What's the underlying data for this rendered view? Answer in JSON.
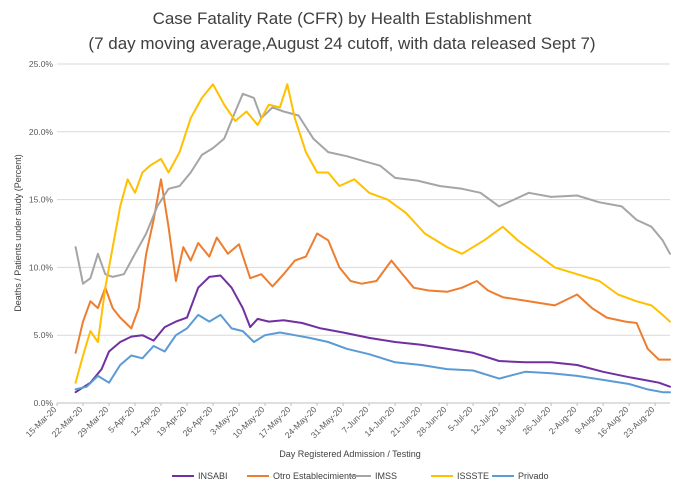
{
  "chart_data": {
    "type": "line",
    "title": "Case Fatality Rate (CFR) by Health Establishment",
    "subtitle": "(7 day moving average,August  24 cutoff, with data released Sept 7)",
    "xlabel": "Day Registered Admission  / Testing",
    "ylabel": "Deaths / Patients under study (Percent)",
    "ylim": [
      0,
      25
    ],
    "yticks": [
      "0.0%",
      "5.0%",
      "10.0%",
      "15.0%",
      "20.0%",
      "25.0%"
    ],
    "ytick_values": [
      0,
      5,
      10,
      15,
      20,
      25
    ],
    "x_start": "2020-03-15",
    "x_end": "2020-08-27",
    "x_tick_dates": [
      "2020-03-15",
      "2020-03-22",
      "2020-03-29",
      "2020-04-05",
      "2020-04-12",
      "2020-04-19",
      "2020-04-26",
      "2020-05-03",
      "2020-05-10",
      "2020-05-17",
      "2020-05-24",
      "2020-05-31",
      "2020-06-07",
      "2020-06-14",
      "2020-06-21",
      "2020-06-28",
      "2020-07-05",
      "2020-07-12",
      "2020-07-19",
      "2020-07-26",
      "2020-08-02",
      "2020-08-09",
      "2020-08-16",
      "2020-08-23"
    ],
    "x_tick_labels": [
      "15-Mar-20",
      "22-Mar-20",
      "29-Mar-20",
      "5-Apr-20",
      "12-Apr-20",
      "19-Apr-20",
      "26-Apr-20",
      "3-May-20",
      "10-May-20",
      "17-May-20",
      "24-May-20",
      "31-May-20",
      "7-Jun-20",
      "14-Jun-20",
      "21-Jun-20",
      "28-Jun-20",
      "5-Jul-20",
      "12-Jul-20",
      "19-Jul-20",
      "26-Jul-20",
      "2-Aug-20",
      "9-Aug-20",
      "16-Aug-20",
      "23-Aug-20"
    ],
    "grid": "horizontal",
    "legend_position": "bottom",
    "series": [
      {
        "name": "INSABI",
        "color": "#7030A0",
        "points": [
          [
            "2020-03-20",
            0.8
          ],
          [
            "2020-03-24",
            1.5
          ],
          [
            "2020-03-27",
            2.5
          ],
          [
            "2020-03-29",
            3.8
          ],
          [
            "2020-04-01",
            4.5
          ],
          [
            "2020-04-04",
            4.9
          ],
          [
            "2020-04-07",
            5.0
          ],
          [
            "2020-04-10",
            4.6
          ],
          [
            "2020-04-13",
            5.6
          ],
          [
            "2020-04-16",
            6.0
          ],
          [
            "2020-04-19",
            6.3
          ],
          [
            "2020-04-22",
            8.5
          ],
          [
            "2020-04-25",
            9.3
          ],
          [
            "2020-04-28",
            9.4
          ],
          [
            "2020-05-01",
            8.5
          ],
          [
            "2020-05-04",
            7.0
          ],
          [
            "2020-05-06",
            5.6
          ],
          [
            "2020-05-08",
            6.2
          ],
          [
            "2020-05-11",
            6.0
          ],
          [
            "2020-05-15",
            6.1
          ],
          [
            "2020-05-20",
            5.9
          ],
          [
            "2020-05-25",
            5.5
          ],
          [
            "2020-05-31",
            5.2
          ],
          [
            "2020-06-07",
            4.8
          ],
          [
            "2020-06-14",
            4.5
          ],
          [
            "2020-06-21",
            4.3
          ],
          [
            "2020-06-28",
            4.0
          ],
          [
            "2020-07-05",
            3.7
          ],
          [
            "2020-07-12",
            3.1
          ],
          [
            "2020-07-19",
            3.0
          ],
          [
            "2020-07-26",
            3.0
          ],
          [
            "2020-08-02",
            2.8
          ],
          [
            "2020-08-09",
            2.3
          ],
          [
            "2020-08-16",
            1.9
          ],
          [
            "2020-08-20",
            1.7
          ],
          [
            "2020-08-24",
            1.5
          ],
          [
            "2020-08-27",
            1.2
          ]
        ]
      },
      {
        "name": "Otro Establecimiento",
        "color": "#ED7D31",
        "points": [
          [
            "2020-03-20",
            3.7
          ],
          [
            "2020-03-22",
            6.0
          ],
          [
            "2020-03-24",
            7.5
          ],
          [
            "2020-03-26",
            7.0
          ],
          [
            "2020-03-28",
            8.5
          ],
          [
            "2020-03-30",
            7.0
          ],
          [
            "2020-04-01",
            6.3
          ],
          [
            "2020-04-04",
            5.5
          ],
          [
            "2020-04-06",
            7.0
          ],
          [
            "2020-04-08",
            11.0
          ],
          [
            "2020-04-10",
            13.5
          ],
          [
            "2020-04-12",
            16.5
          ],
          [
            "2020-04-14",
            13.0
          ],
          [
            "2020-04-16",
            9.0
          ],
          [
            "2020-04-18",
            11.5
          ],
          [
            "2020-04-20",
            10.5
          ],
          [
            "2020-04-22",
            11.8
          ],
          [
            "2020-04-25",
            10.8
          ],
          [
            "2020-04-27",
            12.2
          ],
          [
            "2020-04-30",
            11.0
          ],
          [
            "2020-05-03",
            11.7
          ],
          [
            "2020-05-06",
            9.2
          ],
          [
            "2020-05-09",
            9.5
          ],
          [
            "2020-05-12",
            8.6
          ],
          [
            "2020-05-15",
            9.5
          ],
          [
            "2020-05-18",
            10.5
          ],
          [
            "2020-05-21",
            10.8
          ],
          [
            "2020-05-24",
            12.5
          ],
          [
            "2020-05-27",
            12.0
          ],
          [
            "2020-05-30",
            10.0
          ],
          [
            "2020-06-02",
            9.0
          ],
          [
            "2020-06-05",
            8.8
          ],
          [
            "2020-06-09",
            9.0
          ],
          [
            "2020-06-13",
            10.5
          ],
          [
            "2020-06-16",
            9.5
          ],
          [
            "2020-06-19",
            8.5
          ],
          [
            "2020-06-23",
            8.3
          ],
          [
            "2020-06-28",
            8.2
          ],
          [
            "2020-07-02",
            8.5
          ],
          [
            "2020-07-06",
            9.0
          ],
          [
            "2020-07-09",
            8.3
          ],
          [
            "2020-07-13",
            7.8
          ],
          [
            "2020-07-20",
            7.5
          ],
          [
            "2020-07-27",
            7.2
          ],
          [
            "2020-08-02",
            8.0
          ],
          [
            "2020-08-06",
            7.0
          ],
          [
            "2020-08-10",
            6.3
          ],
          [
            "2020-08-15",
            6.0
          ],
          [
            "2020-08-18",
            5.9
          ],
          [
            "2020-08-21",
            4.0
          ],
          [
            "2020-08-24",
            3.2
          ],
          [
            "2020-08-27",
            3.2
          ]
        ]
      },
      {
        "name": "IMSS",
        "color": "#A5A5A5",
        "points": [
          [
            "2020-03-20",
            11.5
          ],
          [
            "2020-03-22",
            8.8
          ],
          [
            "2020-03-24",
            9.2
          ],
          [
            "2020-03-26",
            11.0
          ],
          [
            "2020-03-28",
            9.5
          ],
          [
            "2020-03-30",
            9.3
          ],
          [
            "2020-04-02",
            9.5
          ],
          [
            "2020-04-05",
            11.0
          ],
          [
            "2020-04-08",
            12.5
          ],
          [
            "2020-04-11",
            14.5
          ],
          [
            "2020-04-14",
            15.8
          ],
          [
            "2020-04-17",
            16.0
          ],
          [
            "2020-04-20",
            17.0
          ],
          [
            "2020-04-23",
            18.3
          ],
          [
            "2020-04-26",
            18.8
          ],
          [
            "2020-04-29",
            19.5
          ],
          [
            "2020-05-02",
            21.5
          ],
          [
            "2020-05-04",
            22.8
          ],
          [
            "2020-05-07",
            22.5
          ],
          [
            "2020-05-09",
            21.0
          ],
          [
            "2020-05-12",
            21.8
          ],
          [
            "2020-05-15",
            21.5
          ],
          [
            "2020-05-19",
            21.2
          ],
          [
            "2020-05-23",
            19.5
          ],
          [
            "2020-05-27",
            18.5
          ],
          [
            "2020-06-01",
            18.2
          ],
          [
            "2020-06-06",
            17.8
          ],
          [
            "2020-06-10",
            17.5
          ],
          [
            "2020-06-14",
            16.6
          ],
          [
            "2020-06-20",
            16.4
          ],
          [
            "2020-06-26",
            16.0
          ],
          [
            "2020-07-02",
            15.8
          ],
          [
            "2020-07-07",
            15.5
          ],
          [
            "2020-07-12",
            14.5
          ],
          [
            "2020-07-16",
            15.0
          ],
          [
            "2020-07-20",
            15.5
          ],
          [
            "2020-07-26",
            15.2
          ],
          [
            "2020-08-02",
            15.3
          ],
          [
            "2020-08-08",
            14.8
          ],
          [
            "2020-08-14",
            14.5
          ],
          [
            "2020-08-18",
            13.5
          ],
          [
            "2020-08-22",
            13.0
          ],
          [
            "2020-08-25",
            12.0
          ],
          [
            "2020-08-27",
            11.0
          ]
        ]
      },
      {
        "name": "ISSSTE",
        "color": "#FFC000",
        "points": [
          [
            "2020-03-20",
            1.5
          ],
          [
            "2020-03-22",
            3.5
          ],
          [
            "2020-03-24",
            5.3
          ],
          [
            "2020-03-26",
            4.5
          ],
          [
            "2020-03-28",
            8.5
          ],
          [
            "2020-03-30",
            11.5
          ],
          [
            "2020-04-01",
            14.5
          ],
          [
            "2020-04-03",
            16.5
          ],
          [
            "2020-04-05",
            15.5
          ],
          [
            "2020-04-07",
            17.0
          ],
          [
            "2020-04-09",
            17.5
          ],
          [
            "2020-04-12",
            18.0
          ],
          [
            "2020-04-14",
            17.0
          ],
          [
            "2020-04-17",
            18.5
          ],
          [
            "2020-04-20",
            21.0
          ],
          [
            "2020-04-23",
            22.5
          ],
          [
            "2020-04-26",
            23.5
          ],
          [
            "2020-04-29",
            22.0
          ],
          [
            "2020-05-02",
            20.8
          ],
          [
            "2020-05-05",
            21.5
          ],
          [
            "2020-05-08",
            20.5
          ],
          [
            "2020-05-11",
            22.0
          ],
          [
            "2020-05-14",
            21.8
          ],
          [
            "2020-05-16",
            23.5
          ],
          [
            "2020-05-18",
            21.0
          ],
          [
            "2020-05-21",
            18.5
          ],
          [
            "2020-05-24",
            17.0
          ],
          [
            "2020-05-27",
            17.0
          ],
          [
            "2020-05-30",
            16.0
          ],
          [
            "2020-06-03",
            16.5
          ],
          [
            "2020-06-07",
            15.5
          ],
          [
            "2020-06-12",
            15.0
          ],
          [
            "2020-06-17",
            14.0
          ],
          [
            "2020-06-22",
            12.5
          ],
          [
            "2020-06-28",
            11.5
          ],
          [
            "2020-07-02",
            11.0
          ],
          [
            "2020-07-08",
            12.0
          ],
          [
            "2020-07-13",
            13.0
          ],
          [
            "2020-07-17",
            12.0
          ],
          [
            "2020-07-22",
            11.0
          ],
          [
            "2020-07-27",
            10.0
          ],
          [
            "2020-08-02",
            9.5
          ],
          [
            "2020-08-08",
            9.0
          ],
          [
            "2020-08-13",
            8.0
          ],
          [
            "2020-08-18",
            7.5
          ],
          [
            "2020-08-22",
            7.2
          ],
          [
            "2020-08-25",
            6.5
          ],
          [
            "2020-08-27",
            6.0
          ]
        ]
      },
      {
        "name": "Privado",
        "color": "#5B9BD5",
        "points": [
          [
            "2020-03-20",
            1.0
          ],
          [
            "2020-03-23",
            1.2
          ],
          [
            "2020-03-26",
            2.0
          ],
          [
            "2020-03-29",
            1.5
          ],
          [
            "2020-04-01",
            2.8
          ],
          [
            "2020-04-04",
            3.5
          ],
          [
            "2020-04-07",
            3.3
          ],
          [
            "2020-04-10",
            4.2
          ],
          [
            "2020-04-13",
            3.8
          ],
          [
            "2020-04-16",
            5.0
          ],
          [
            "2020-04-19",
            5.5
          ],
          [
            "2020-04-22",
            6.5
          ],
          [
            "2020-04-25",
            6.0
          ],
          [
            "2020-04-28",
            6.5
          ],
          [
            "2020-05-01",
            5.5
          ],
          [
            "2020-05-04",
            5.3
          ],
          [
            "2020-05-07",
            4.5
          ],
          [
            "2020-05-10",
            5.0
          ],
          [
            "2020-05-14",
            5.2
          ],
          [
            "2020-05-18",
            5.0
          ],
          [
            "2020-05-22",
            4.8
          ],
          [
            "2020-05-27",
            4.5
          ],
          [
            "2020-06-01",
            4.0
          ],
          [
            "2020-06-07",
            3.6
          ],
          [
            "2020-06-14",
            3.0
          ],
          [
            "2020-06-21",
            2.8
          ],
          [
            "2020-06-28",
            2.5
          ],
          [
            "2020-07-05",
            2.4
          ],
          [
            "2020-07-12",
            1.8
          ],
          [
            "2020-07-19",
            2.3
          ],
          [
            "2020-07-26",
            2.2
          ],
          [
            "2020-08-02",
            2.0
          ],
          [
            "2020-08-09",
            1.7
          ],
          [
            "2020-08-16",
            1.4
          ],
          [
            "2020-08-21",
            1.0
          ],
          [
            "2020-08-25",
            0.8
          ],
          [
            "2020-08-27",
            0.8
          ]
        ]
      }
    ]
  }
}
